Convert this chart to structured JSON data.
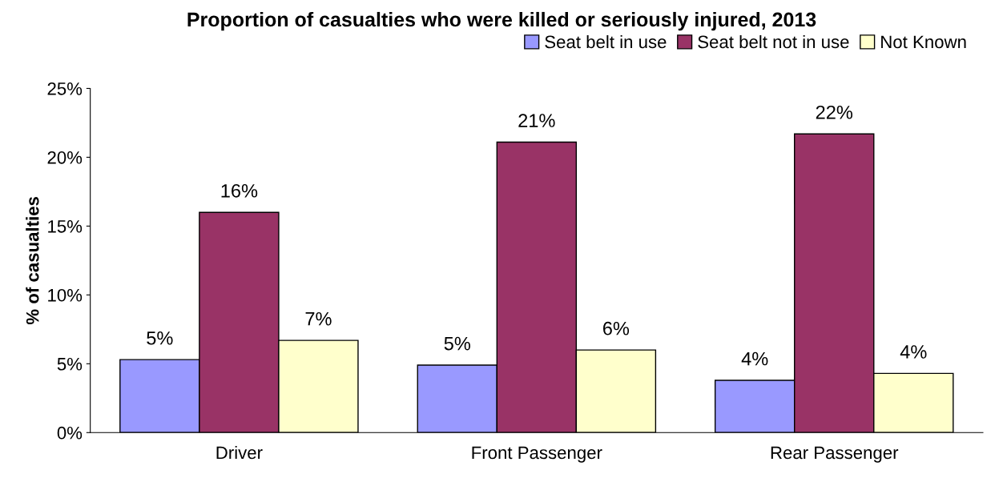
{
  "chart_data": {
    "type": "bar",
    "title": "Proportion of casualties who were killed or seriously injured, 2013",
    "ylabel": "% of casualties",
    "categories": [
      "Driver",
      "Front Passenger",
      "Rear Passenger"
    ],
    "series": [
      {
        "name": "Seat belt in use",
        "color": "#9999ff",
        "values": [
          5.3,
          4.9,
          3.8
        ],
        "value_labels": [
          "5%",
          "5%",
          "4%"
        ]
      },
      {
        "name": "Seat belt not in use",
        "color": "#993366",
        "values": [
          16.0,
          21.1,
          21.7
        ],
        "value_labels": [
          "16%",
          "21%",
          "22%"
        ]
      },
      {
        "name": "Not Known",
        "color": "#ffffcc",
        "values": [
          6.7,
          6.0,
          4.3
        ],
        "value_labels": [
          "7%",
          "6%",
          "4%"
        ]
      }
    ],
    "ylim": [
      0,
      25
    ],
    "yticks": [
      {
        "value": 0,
        "label": "0%"
      },
      {
        "value": 5,
        "label": "5%"
      },
      {
        "value": 10,
        "label": "10%"
      },
      {
        "value": 15,
        "label": "15%"
      },
      {
        "value": 20,
        "label": "20%"
      },
      {
        "value": 25,
        "label": "25%"
      }
    ],
    "grid": false,
    "legend": "top right"
  }
}
